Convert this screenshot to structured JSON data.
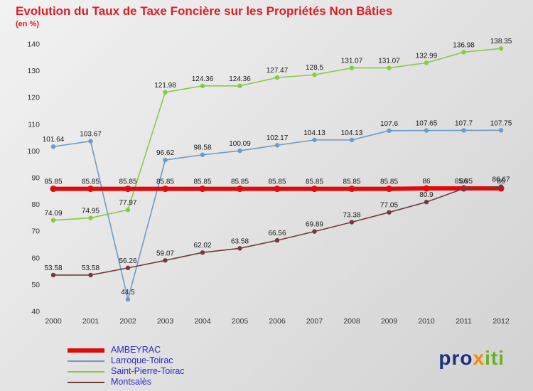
{
  "title": "Evolution du Taux de Taxe Foncière sur les Propriétés Non Bâties",
  "subtitle": "(en %)",
  "colors": {
    "title": "#e21b22",
    "subtitle": "#e21b22",
    "legend_text": "#2a2ac8",
    "data_label": "#1a1a1a",
    "axis_text": "#333333",
    "ambeyrac": "#e10a0a",
    "larroque": "#6b9cc9",
    "saint_pierre": "#86cb45",
    "montsales": "#733a3a",
    "logo_pro": "#1d2f7e",
    "logo_x": "#f28c00",
    "logo_iti": "#6ab023"
  },
  "logo": {
    "pro": "pro",
    "x": "x",
    "iti": "iti"
  },
  "chart_data": {
    "type": "line",
    "title": "Evolution du Taux de Taxe Foncière sur les Propriétés Non Bâties",
    "ylabel": "en %",
    "x": [
      2000,
      2001,
      2002,
      2003,
      2004,
      2005,
      2006,
      2007,
      2008,
      2009,
      2010,
      2011,
      2012
    ],
    "ylim": [
      40,
      140
    ],
    "yticks": [
      40,
      50,
      60,
      70,
      80,
      90,
      100,
      110,
      120,
      130,
      140
    ],
    "grid": false,
    "legend_position": "bottom-left",
    "series": [
      {
        "name": "AMBEYRAC",
        "color": "#e10a0a",
        "line_width": 6,
        "marker_radius": 4.5,
        "values": [
          85.85,
          85.85,
          85.85,
          85.85,
          85.85,
          85.85,
          85.85,
          85.85,
          85.85,
          85.85,
          86,
          86,
          86
        ]
      },
      {
        "name": "Larroque-Toirac",
        "color": "#6b9cc9",
        "line_width": 1.6,
        "marker_radius": 3.2,
        "values": [
          101.64,
          103.67,
          44.5,
          96.62,
          98.58,
          100.09,
          102.17,
          104.13,
          104.13,
          107.6,
          107.65,
          107.7,
          107.75
        ]
      },
      {
        "name": "Saint-Pierre-Toirac",
        "color": "#86cb45",
        "line_width": 1.6,
        "marker_radius": 3.2,
        "values": [
          74.09,
          74.95,
          77.97,
          121.98,
          124.36,
          124.36,
          127.47,
          128.5,
          131.07,
          131.07,
          132.99,
          136.98,
          138.35
        ]
      },
      {
        "name": "Montsalès",
        "color": "#733a3a",
        "line_width": 1.6,
        "marker_radius": 3.2,
        "values": [
          53.58,
          53.58,
          56.26,
          59.07,
          62.02,
          63.58,
          66.56,
          69.89,
          73.38,
          77.05,
          80.9,
          85.95,
          86.67
        ]
      }
    ]
  }
}
